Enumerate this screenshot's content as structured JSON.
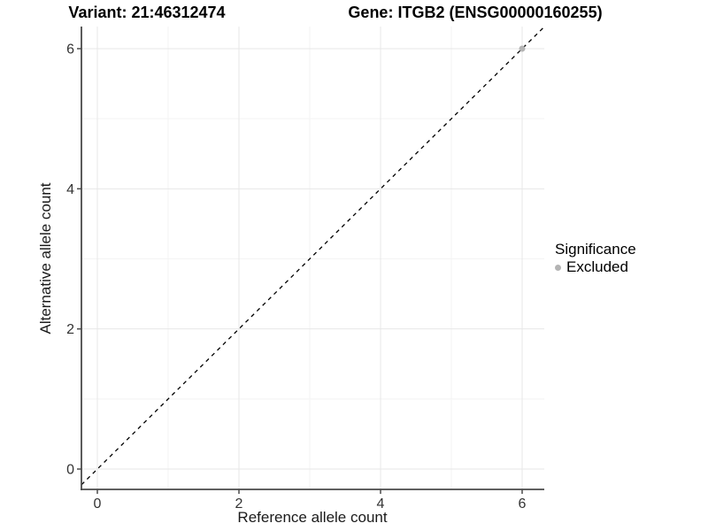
{
  "figure": {
    "variant_title": "Variant: 21:46312474",
    "gene_title": "Gene: ITGB2 (ENSG00000160255)"
  },
  "chart_data": {
    "type": "scatter",
    "title": "Variant: 21:46312474 | Gene: ITGB2 (ENSG00000160255)",
    "xlabel": "Reference allele count",
    "ylabel": "Alternative allele count",
    "xlim": [
      -0.23,
      6.31
    ],
    "ylim": [
      -0.29,
      6.32
    ],
    "x_ticks": [
      0,
      2,
      4,
      6
    ],
    "y_ticks": [
      0,
      2,
      4,
      6
    ],
    "x_minor_ticks": [
      1,
      3,
      5
    ],
    "y_minor_ticks": [
      1,
      3,
      5
    ],
    "grid": "on",
    "legend_position": "right",
    "series": [
      {
        "name": "Excluded",
        "color": "#b4b4b4",
        "marker": "circle",
        "points": [
          {
            "x": 6,
            "y": 6
          }
        ]
      }
    ],
    "reference_line": {
      "equation": "y = x",
      "style": "dashed",
      "color": "#000000"
    }
  },
  "legend": {
    "title": "Significance",
    "items": [
      {
        "label": "Excluded",
        "color": "#b4b4b4"
      }
    ]
  },
  "colors": {
    "background": "#ffffff",
    "grid_major": "#e7e7e7",
    "grid_minor": "#f3f3f3",
    "axis_line": "#4a4a4a",
    "tick_text": "#333333",
    "point": "#b4b4b4"
  }
}
